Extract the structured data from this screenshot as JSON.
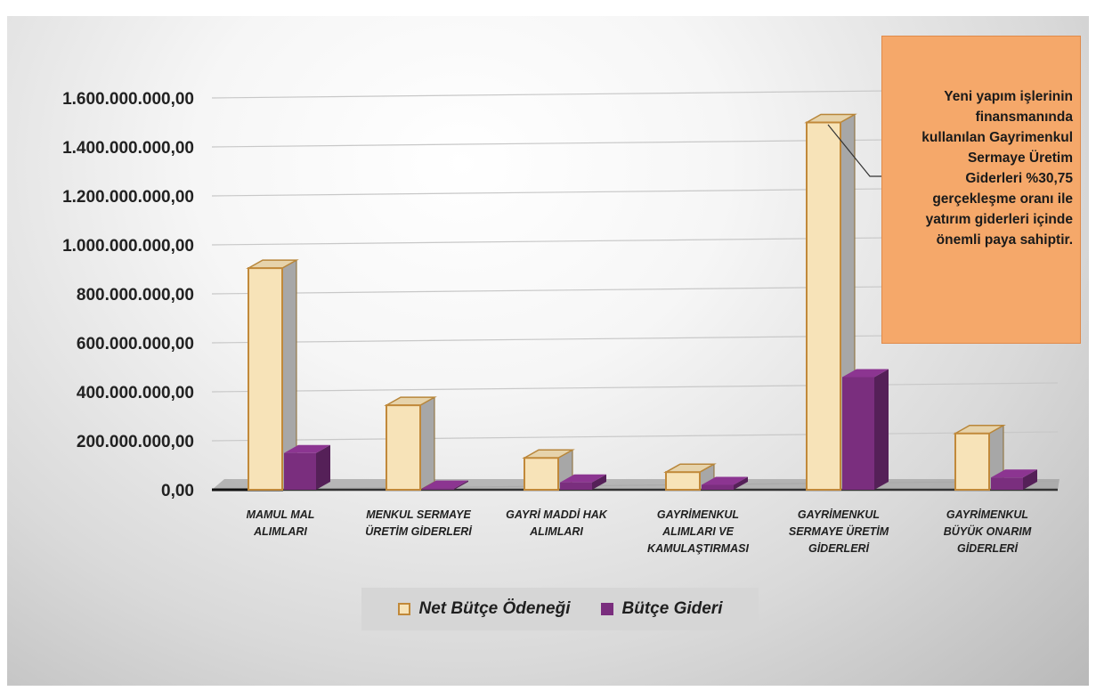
{
  "chart_data": {
    "type": "bar",
    "title": "",
    "xlabel": "",
    "ylabel": "",
    "ylim": [
      0,
      1600000000
    ],
    "y_ticks": [
      "0,00",
      "200.000.000,00",
      "400.000.000,00",
      "600.000.000,00",
      "800.000.000,00",
      "1.000.000.000,00",
      "1.200.000.000,00",
      "1.400.000.000,00",
      "1.600.000.000,00"
    ],
    "grid": true,
    "legend_position": "bottom",
    "categories": [
      [
        "MAMUL MAL",
        "ALIMLARI"
      ],
      [
        "MENKUL SERMAYE",
        "ÜRETİM GİDERLERİ"
      ],
      [
        "GAYRİ MADDİ HAK",
        "ALIMLARI"
      ],
      [
        "GAYRİMENKUL",
        "ALIMLARI VE",
        "KAMULAŞTIRMASI"
      ],
      [
        "GAYRİMENKUL",
        "SERMAYE ÜRETİM",
        "GİDERLERİ"
      ],
      [
        "GAYRİMENKUL",
        "BÜYÜK ONARIM",
        "GİDERLERİ"
      ]
    ],
    "series": [
      {
        "name": "Net Bütçe Ödeneği",
        "color": "#f7e3b8",
        "values": [
          905000000,
          345000000,
          130000000,
          72000000,
          1500000000,
          230000000
        ]
      },
      {
        "name": "Bütçe Gideri",
        "color": "#7a2e7e",
        "values": [
          150000000,
          5000000,
          30000000,
          20000000,
          460000000,
          50000000
        ]
      }
    ],
    "annotation": "Yeni yapım işlerinin finansmanında kullanılan Gayrimenkul Sermaye Üretim Giderleri %30,75 gerçekleşme oranı ile yatırım giderleri içinde önemli paya sahiptir."
  },
  "callout_lines": [
    "Yeni yapım işlerinin",
    "finansmanında",
    "kullanılan Gayrimenkul",
    "Sermaye Üretim",
    "Giderleri %30,75",
    "gerçekleşme oranı ile",
    "yatırım giderleri içinde",
    "önemli paya sahiptir."
  ]
}
